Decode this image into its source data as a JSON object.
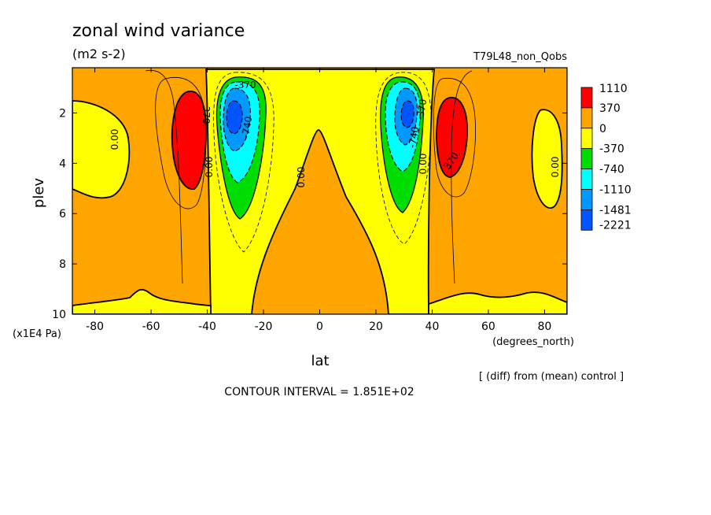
{
  "chart_data": {
    "type": "heatmap",
    "title": "zonal wind variance",
    "units": "(m2 s-2)",
    "experiment": "T79L48_non_Qobs",
    "xlabel": "lat",
    "x_units": "(degrees_north)",
    "ylabel": "plev",
    "y_units": "(x1E4 Pa)",
    "xlim": [
      -88,
      88
    ],
    "ylim": [
      10,
      0.2
    ],
    "x_ticks": [
      -80,
      -60,
      -40,
      -20,
      0,
      20,
      40,
      60,
      80
    ],
    "y_ticks": [
      2,
      4,
      6,
      8,
      10
    ],
    "contour_interval_text": "CONTOUR INTERVAL = 1.851E+02",
    "diff_note": "[ (diff) from (mean) control ]",
    "contour_labels": [
      "0.00",
      "0.00",
      "0.00",
      "0.00",
      "0.00",
      "-370",
      "-740",
      "-370",
      "-740",
      "370.",
      "370."
    ],
    "legend": {
      "levels": [
        "1110",
        "370",
        "0",
        "-370",
        "-740",
        "-1110",
        "-1481",
        "-2221"
      ],
      "colors": [
        "#ff0000",
        "#ffa500",
        "#ffff00",
        "#00dd00",
        "#00ffff",
        "#0099ff",
        "#0055ff"
      ]
    },
    "features": [
      {
        "name": "SH negative core",
        "lat": -30,
        "plev": 2.3,
        "value": -2000
      },
      {
        "name": "NH negative core",
        "lat": 32,
        "plev": 2.0,
        "value": -1900
      },
      {
        "name": "SH positive maximum",
        "lat": -47,
        "plev": 2.8,
        "value": 700
      },
      {
        "name": "NH positive maximum",
        "lat": 47,
        "plev": 2.8,
        "value": 650
      },
      {
        "name": "SH high-latitude negative",
        "lat": -80,
        "plev": 3.0,
        "value": -150
      },
      {
        "name": "NH high-latitude negative",
        "lat": 85,
        "plev": 4.0,
        "value": -150
      },
      {
        "name": "equatorial negative tongue",
        "lat": 0,
        "plev": 6.5,
        "value": -100
      }
    ]
  }
}
